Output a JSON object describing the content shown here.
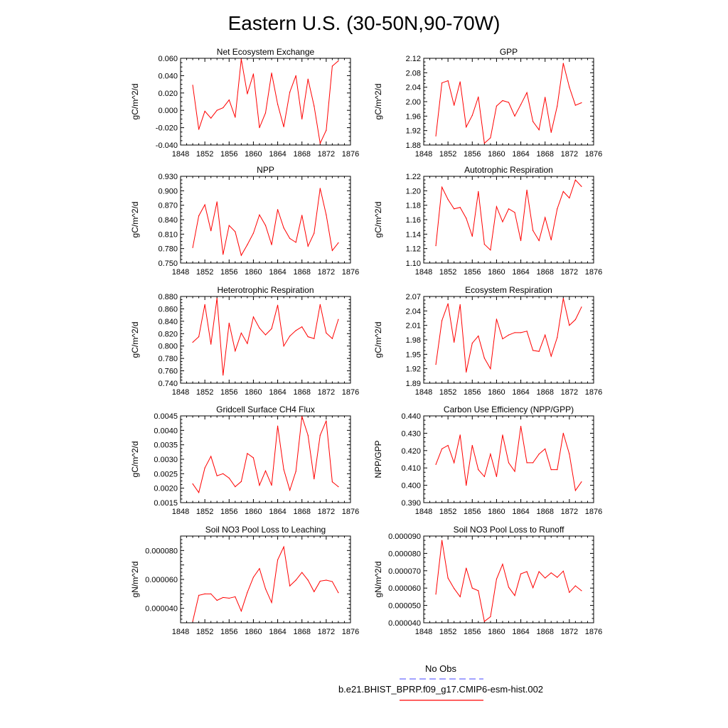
{
  "title": "Eastern U.S. (30-50N,90-70W)",
  "colors": {
    "model": "#ff0000",
    "obs": "#6a6aff"
  },
  "legend": {
    "obs_label": "No Obs",
    "model_label": "b.e21.BHIST_BPRP.f09_g17.CMIP6-esm-hist.002"
  },
  "chart_data": [
    {
      "type": "line",
      "title": "Net Ecosystem Exchange",
      "ylabel": "gC/m^2/d",
      "xlim": [
        1848,
        1876
      ],
      "xticks": [
        1848,
        1852,
        1856,
        1860,
        1864,
        1868,
        1872,
        1876
      ],
      "ylim": [
        -0.04,
        0.06
      ],
      "yticks": [
        "-0.040",
        "-0.020",
        "0.000",
        "0.020",
        "0.040",
        "0.060"
      ],
      "x": [
        1850,
        1851,
        1852,
        1853,
        1854,
        1855,
        1856,
        1857,
        1858,
        1859,
        1860,
        1861,
        1862,
        1863,
        1864,
        1865,
        1866,
        1867,
        1868,
        1869,
        1870,
        1871,
        1872,
        1873,
        1874
      ],
      "series": [
        {
          "values": [
            0.029,
            -0.022,
            -0.001,
            -0.009,
            0.0,
            0.003,
            0.012,
            -0.008,
            0.059,
            0.019,
            0.042,
            -0.02,
            -0.003,
            0.043,
            0.007,
            -0.019,
            0.021,
            0.04,
            -0.01,
            0.036,
            0.005,
            -0.038,
            -0.023,
            0.051,
            0.057
          ]
        }
      ]
    },
    {
      "type": "line",
      "title": "GPP",
      "ylabel": "gC/m^2/d",
      "xlim": [
        1848,
        1876
      ],
      "xticks": [
        1848,
        1852,
        1856,
        1860,
        1864,
        1868,
        1872,
        1876
      ],
      "ylim": [
        1.88,
        2.12
      ],
      "yticks": [
        "1.88",
        "1.92",
        "1.96",
        "2.00",
        "2.04",
        "2.08",
        "2.12"
      ],
      "x": [
        1850,
        1851,
        1852,
        1853,
        1854,
        1855,
        1856,
        1857,
        1858,
        1859,
        1860,
        1861,
        1862,
        1863,
        1864,
        1865,
        1866,
        1867,
        1868,
        1869,
        1870,
        1871,
        1872,
        1873,
        1874
      ],
      "series": [
        {
          "values": [
            1.905,
            2.052,
            2.058,
            1.99,
            2.055,
            1.93,
            1.962,
            2.013,
            1.885,
            1.9,
            1.988,
            2.003,
            1.998,
            1.96,
            1.992,
            2.025,
            1.945,
            1.922,
            2.012,
            1.915,
            1.988,
            2.106,
            2.04,
            1.99,
            1.997
          ]
        }
      ]
    },
    {
      "type": "line",
      "title": "NPP",
      "ylabel": "gC/m^2/d",
      "xlim": [
        1848,
        1876
      ],
      "xticks": [
        1848,
        1852,
        1856,
        1860,
        1864,
        1868,
        1872,
        1876
      ],
      "ylim": [
        0.75,
        0.93
      ],
      "yticks": [
        "0.750",
        "0.780",
        "0.810",
        "0.840",
        "0.870",
        "0.900",
        "0.930"
      ],
      "x": [
        1850,
        1851,
        1852,
        1853,
        1854,
        1855,
        1856,
        1857,
        1858,
        1859,
        1860,
        1861,
        1862,
        1863,
        1864,
        1865,
        1866,
        1867,
        1868,
        1869,
        1870,
        1871,
        1872,
        1873,
        1874
      ],
      "series": [
        {
          "values": [
            0.782,
            0.848,
            0.871,
            0.817,
            0.877,
            0.768,
            0.828,
            0.815,
            0.766,
            0.788,
            0.812,
            0.85,
            0.828,
            0.788,
            0.861,
            0.823,
            0.801,
            0.793,
            0.849,
            0.785,
            0.812,
            0.905,
            0.85,
            0.776,
            0.792
          ]
        }
      ]
    },
    {
      "type": "line",
      "title": "Autotrophic Respiration",
      "ylabel": "gC/m^2/d",
      "xlim": [
        1848,
        1876
      ],
      "xticks": [
        1848,
        1852,
        1856,
        1860,
        1864,
        1868,
        1872,
        1876
      ],
      "ylim": [
        1.1,
        1.22
      ],
      "yticks": [
        "1.10",
        "1.12",
        "1.14",
        "1.16",
        "1.18",
        "1.20",
        "1.22"
      ],
      "x": [
        1850,
        1851,
        1852,
        1853,
        1854,
        1855,
        1856,
        1857,
        1858,
        1859,
        1860,
        1861,
        1862,
        1863,
        1864,
        1865,
        1866,
        1867,
        1868,
        1869,
        1870,
        1871,
        1872,
        1873,
        1874
      ],
      "series": [
        {
          "values": [
            1.124,
            1.205,
            1.188,
            1.175,
            1.177,
            1.162,
            1.137,
            1.199,
            1.126,
            1.118,
            1.178,
            1.157,
            1.175,
            1.17,
            1.131,
            1.201,
            1.145,
            1.131,
            1.163,
            1.132,
            1.175,
            1.199,
            1.19,
            1.215,
            1.206
          ]
        }
      ]
    },
    {
      "type": "line",
      "title": "Heterotrophic Respiration",
      "ylabel": "gC/m^2/d",
      "xlim": [
        1848,
        1876
      ],
      "xticks": [
        1848,
        1852,
        1856,
        1860,
        1864,
        1868,
        1872,
        1876
      ],
      "ylim": [
        0.74,
        0.88
      ],
      "yticks": [
        "0.740",
        "0.760",
        "0.780",
        "0.800",
        "0.820",
        "0.840",
        "0.860",
        "0.880"
      ],
      "x": [
        1850,
        1851,
        1852,
        1853,
        1854,
        1855,
        1856,
        1857,
        1858,
        1859,
        1860,
        1861,
        1862,
        1863,
        1864,
        1865,
        1866,
        1867,
        1868,
        1869,
        1870,
        1871,
        1872,
        1873,
        1874
      ],
      "series": [
        {
          "values": [
            0.806,
            0.815,
            0.867,
            0.803,
            0.877,
            0.753,
            0.837,
            0.792,
            0.821,
            0.804,
            0.847,
            0.829,
            0.818,
            0.828,
            0.866,
            0.8,
            0.816,
            0.825,
            0.831,
            0.815,
            0.812,
            0.867,
            0.821,
            0.812,
            0.843
          ]
        }
      ]
    },
    {
      "type": "line",
      "title": "Ecosystem Respiration",
      "ylabel": "gC/m^2/d",
      "xlim": [
        1848,
        1876
      ],
      "xticks": [
        1848,
        1852,
        1856,
        1860,
        1864,
        1868,
        1872,
        1876
      ],
      "ylim": [
        1.89,
        2.07
      ],
      "yticks": [
        "1.89",
        "1.92",
        "1.95",
        "1.98",
        "2.01",
        "2.04",
        "2.07"
      ],
      "x": [
        1850,
        1851,
        1852,
        1853,
        1854,
        1855,
        1856,
        1857,
        1858,
        1859,
        1860,
        1861,
        1862,
        1863,
        1864,
        1865,
        1866,
        1867,
        1868,
        1869,
        1870,
        1871,
        1872,
        1873,
        1874
      ],
      "series": [
        {
          "values": [
            1.929,
            2.02,
            2.055,
            1.975,
            2.053,
            1.913,
            1.973,
            1.988,
            1.942,
            1.92,
            2.023,
            1.982,
            1.99,
            1.995,
            1.995,
            1.998,
            1.958,
            1.956,
            1.99,
            1.946,
            1.985,
            2.066,
            2.01,
            2.022,
            2.048
          ]
        }
      ]
    },
    {
      "type": "line",
      "title": "Gridcell Surface CH4 Flux",
      "ylabel": "gC/m^2/d",
      "xlim": [
        1848,
        1876
      ],
      "xticks": [
        1848,
        1852,
        1856,
        1860,
        1864,
        1868,
        1872,
        1876
      ],
      "ylim": [
        0.0015,
        0.0045
      ],
      "yticks": [
        "0.0015",
        "0.0020",
        "0.0025",
        "0.0030",
        "0.0035",
        "0.0040",
        "0.0045"
      ],
      "x": [
        1850,
        1851,
        1852,
        1853,
        1854,
        1855,
        1856,
        1857,
        1858,
        1859,
        1860,
        1861,
        1862,
        1863,
        1864,
        1865,
        1866,
        1867,
        1868,
        1869,
        1870,
        1871,
        1872,
        1873,
        1874
      ],
      "series": [
        {
          "values": [
            0.00215,
            0.00185,
            0.0027,
            0.0031,
            0.00243,
            0.0025,
            0.00235,
            0.00205,
            0.00223,
            0.0032,
            0.00305,
            0.0021,
            0.0026,
            0.0021,
            0.00415,
            0.00265,
            0.00193,
            0.00258,
            0.00448,
            0.00383,
            0.00232,
            0.00383,
            0.00433,
            0.00222,
            0.00205
          ]
        }
      ]
    },
    {
      "type": "line",
      "title": "Carbon Use Efficiency (NPP/GPP)",
      "ylabel": "NPP/GPP",
      "xlim": [
        1848,
        1876
      ],
      "xticks": [
        1848,
        1852,
        1856,
        1860,
        1864,
        1868,
        1872,
        1876
      ],
      "ylim": [
        0.39,
        0.44
      ],
      "yticks": [
        "0.390",
        "0.400",
        "0.410",
        "0.420",
        "0.430",
        "0.440"
      ],
      "x": [
        1850,
        1851,
        1852,
        1853,
        1854,
        1855,
        1856,
        1857,
        1858,
        1859,
        1860,
        1861,
        1862,
        1863,
        1864,
        1865,
        1866,
        1867,
        1868,
        1869,
        1870,
        1871,
        1872,
        1873,
        1874
      ],
      "series": [
        {
          "values": [
            0.412,
            0.421,
            0.423,
            0.413,
            0.429,
            0.4,
            0.423,
            0.409,
            0.405,
            0.418,
            0.405,
            0.429,
            0.413,
            0.408,
            0.434,
            0.413,
            0.413,
            0.418,
            0.421,
            0.409,
            0.409,
            0.43,
            0.418,
            0.397,
            0.402
          ]
        }
      ]
    },
    {
      "type": "line",
      "title": "Soil NO3 Pool Loss to Leaching",
      "ylabel": "gN/m^2/d",
      "xlim": [
        1848,
        1876
      ],
      "xticks": [
        1848,
        1852,
        1856,
        1860,
        1864,
        1868,
        1872,
        1876
      ],
      "ylim": [
        3e-05,
        9e-05
      ],
      "yticks": [
        "",
        "0.000040",
        "",
        "0.000060",
        "",
        "0.000080",
        ""
      ],
      "x": [
        1850,
        1851,
        1852,
        1853,
        1854,
        1855,
        1856,
        1857,
        1858,
        1859,
        1860,
        1861,
        1862,
        1863,
        1864,
        1865,
        1866,
        1867,
        1868,
        1869,
        1870,
        1871,
        1872,
        1873,
        1874
      ],
      "series": [
        {
          "values": [
            3.1e-05,
            4.9e-05,
            5e-05,
            5e-05,
            4.55e-05,
            4.75e-05,
            4.7e-05,
            4.8e-05,
            3.81e-05,
            5.1e-05,
            6.15e-05,
            6.75e-05,
            5.35e-05,
            4.4e-05,
            7.35e-05,
            8.25e-05,
            5.55e-05,
            5.95e-05,
            6.48e-05,
            5.95e-05,
            5.15e-05,
            5.88e-05,
            5.95e-05,
            5.85e-05,
            5.08e-05
          ]
        }
      ]
    },
    {
      "type": "line",
      "title": "Soil NO3 Pool Loss to Runoff",
      "ylabel": "gN/m^2/d",
      "xlim": [
        1848,
        1876
      ],
      "xticks": [
        1848,
        1852,
        1856,
        1860,
        1864,
        1868,
        1872,
        1876
      ],
      "ylim": [
        4e-05,
        9e-05
      ],
      "yticks": [
        "0.000040",
        "0.000050",
        "0.000060",
        "0.000070",
        "0.000080",
        "0.000090"
      ],
      "x": [
        1850,
        1851,
        1852,
        1853,
        1854,
        1855,
        1856,
        1857,
        1858,
        1859,
        1860,
        1861,
        1862,
        1863,
        1864,
        1865,
        1866,
        1867,
        1868,
        1869,
        1870,
        1871,
        1872,
        1873,
        1874
      ],
      "series": [
        {
          "values": [
            5.65e-05,
            8.75e-05,
            6.58e-05,
            5.98e-05,
            5.5e-05,
            7.15e-05,
            6e-05,
            5.85e-05,
            4.08e-05,
            4.35e-05,
            6.52e-05,
            7.38e-05,
            6.05e-05,
            5.57e-05,
            6.82e-05,
            6.95e-05,
            6.02e-05,
            6.95e-05,
            6.58e-05,
            6.88e-05,
            6.62e-05,
            6.98e-05,
            5.75e-05,
            6.13e-05,
            5.85e-05
          ]
        }
      ]
    }
  ]
}
